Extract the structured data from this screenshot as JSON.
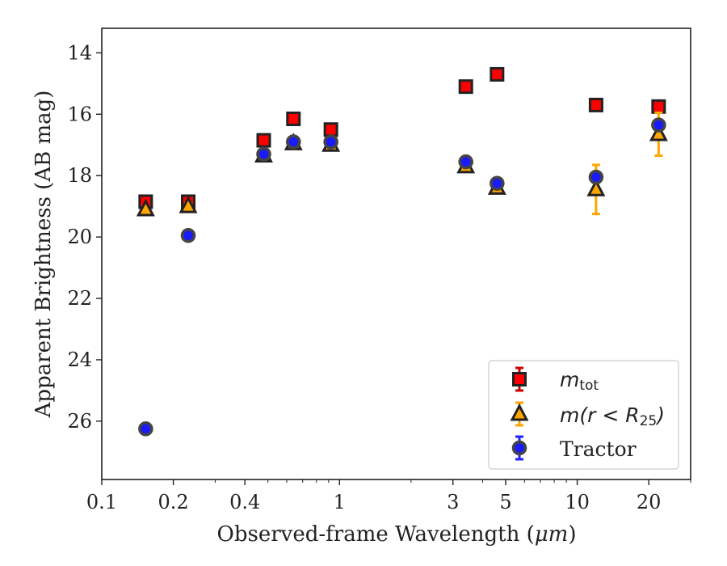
{
  "chart_data": {
    "type": "scatter",
    "title": "",
    "xlabel_text": "Observed-frame Wavelength (",
    "xlabel_unit": "μm",
    "xlabel_close": ")",
    "ylabel": "Apparent Brightness (AB mag)",
    "x_scale": "log",
    "y_inverted": true,
    "xlim": [
      0.1,
      30
    ],
    "ylim": [
      13.2,
      27.9
    ],
    "x_ticks": [
      0.1,
      0.2,
      0.4,
      1,
      3,
      5,
      10,
      20
    ],
    "x_tick_labels": [
      "0.1",
      "0.2",
      "0.4",
      "1",
      "3",
      "5",
      "10",
      "20"
    ],
    "y_ticks": [
      14,
      16,
      18,
      20,
      22,
      24,
      26
    ],
    "y_tick_labels": [
      "14",
      "16",
      "18",
      "20",
      "22",
      "24",
      "26"
    ],
    "grid": false,
    "legend_position": "lower-right",
    "series": [
      {
        "name": "m_tot",
        "label_main": "m",
        "label_sub": "tot",
        "marker": "square",
        "face_color": "#ff0000",
        "edge_color": "#222222",
        "err_color": "#cc0000",
        "x": [
          0.153,
          0.231,
          0.48,
          0.64,
          0.92,
          3.4,
          4.6,
          12.0,
          22.0
        ],
        "y": [
          18.85,
          18.85,
          16.85,
          16.15,
          16.5,
          15.1,
          14.7,
          15.7,
          15.75
        ],
        "err": [
          0.1,
          0.1,
          0.05,
          0.05,
          0.05,
          0.05,
          0.05,
          0.05,
          0.05
        ]
      },
      {
        "name": "m(r < R25)",
        "label_main": "m(r < R",
        "label_sub": "25",
        "label_close": ")",
        "marker": "triangle",
        "face_color": "#ffa500",
        "edge_color": "#222222",
        "err_color": "#ffa500",
        "x": [
          0.153,
          0.231,
          0.48,
          0.64,
          0.92,
          3.4,
          4.6,
          12.0,
          22.0
        ],
        "y": [
          19.1,
          19.0,
          17.35,
          16.95,
          17.0,
          17.7,
          18.4,
          18.45,
          16.65
        ],
        "err": [
          0.1,
          0.1,
          0.05,
          0.05,
          0.05,
          0.08,
          0.08,
          0.8,
          0.7
        ]
      },
      {
        "name": "Tractor",
        "label_main": "Tractor",
        "marker": "circle",
        "face_color": "#1a1aff",
        "edge_color": "#444444",
        "err_color": "#2222ff",
        "x": [
          0.153,
          0.231,
          0.48,
          0.64,
          0.92,
          3.4,
          4.6,
          12.0,
          22.0
        ],
        "y": [
          26.25,
          19.95,
          17.3,
          16.9,
          16.9,
          17.55,
          18.25,
          18.05,
          16.35
        ],
        "err": [
          0.05,
          0.05,
          0.05,
          0.05,
          0.05,
          0.05,
          0.05,
          0.1,
          0.1
        ]
      }
    ]
  }
}
